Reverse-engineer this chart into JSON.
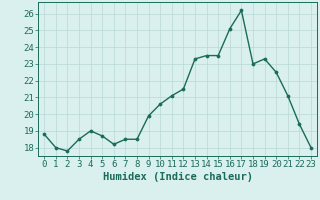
{
  "x": [
    0,
    1,
    2,
    3,
    4,
    5,
    6,
    7,
    8,
    9,
    10,
    11,
    12,
    13,
    14,
    15,
    16,
    17,
    18,
    19,
    20,
    21,
    22,
    23
  ],
  "y": [
    18.8,
    18.0,
    17.8,
    18.5,
    19.0,
    18.7,
    18.2,
    18.5,
    18.5,
    19.9,
    20.6,
    21.1,
    21.5,
    23.3,
    23.5,
    23.5,
    25.1,
    26.2,
    23.0,
    23.3,
    22.5,
    21.1,
    19.4,
    18.0
  ],
  "line_color": "#1a6b5a",
  "marker": "o",
  "marker_size": 2.2,
  "line_width": 1.0,
  "bg_color": "#d9f0ef",
  "grid_color": "#b8d8d5",
  "tick_color": "#1a6b5a",
  "label_color": "#1a6b5a",
  "xlabel": "Humidex (Indice chaleur)",
  "ylim": [
    17.5,
    26.7
  ],
  "yticks": [
    18,
    19,
    20,
    21,
    22,
    23,
    24,
    25,
    26
  ],
  "xticks": [
    0,
    1,
    2,
    3,
    4,
    5,
    6,
    7,
    8,
    9,
    10,
    11,
    12,
    13,
    14,
    15,
    16,
    17,
    18,
    19,
    20,
    21,
    22,
    23
  ],
  "font_size": 6.5,
  "xlabel_fontsize": 7.5
}
